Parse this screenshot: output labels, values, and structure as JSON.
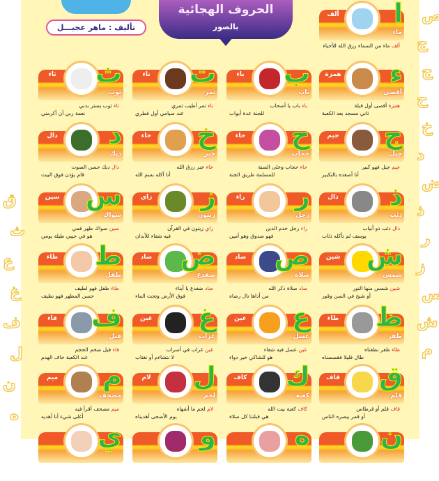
{
  "header": {
    "title": "الحروف الهجائية",
    "subtitle": "بالصور",
    "author": "تأليف : ماهر عجيـــل"
  },
  "colors": {
    "background": "#fff6b8",
    "band": "#f05a28",
    "letter": "#2fb34a",
    "banner": "#3a2c86"
  },
  "cards": [
    {
      "letter": "ا",
      "name": "ألف",
      "word": "ماء",
      "line1_name": "ألف",
      "line1": " ماء من السماء رزق الله للأحياء",
      "line2": "",
      "picture": "water-glass",
      "row": 0,
      "col": 3
    },
    {
      "letter": "ء",
      "name": "همزة",
      "word": "أقصى",
      "line1_name": "همزة",
      "line1": " أقصى أول قبلة",
      "line2": "ثاني مسجد بعد الكعبة",
      "picture": "aqsa-mosque",
      "row": 1,
      "col": 3
    },
    {
      "letter": "ب",
      "name": "باء",
      "word": "باب",
      "line1_name": "باء",
      "line1": " باب يا أصحاب",
      "line2": "للجنة عدة أبواب",
      "picture": "door",
      "row": 1,
      "col": 2
    },
    {
      "letter": "ت",
      "name": "تاء",
      "word": "تمر",
      "line1_name": "تاء",
      "line1": " تمر أطيب ثمري",
      "line2": "عند صيامي أول فطري",
      "picture": "dates",
      "row": 1,
      "col": 1
    },
    {
      "letter": "ث",
      "name": "ثاء",
      "word": "ثوب",
      "line1_name": "ثاء",
      "line1": " ثوب يستر بدني",
      "line2": "نعمة ربي أن أكرمني",
      "picture": "robe",
      "row": 1,
      "col": 0
    },
    {
      "letter": "ج",
      "name": "جيم",
      "word": "جبل",
      "line1_name": "جيم",
      "line1": " جبل فهو كبير",
      "line2": "أنا أصعده بالتكبير",
      "picture": "mountain",
      "row": 2,
      "col": 3
    },
    {
      "letter": "ح",
      "name": "حاء",
      "word": "حجاب",
      "line1_name": "حاء",
      "line1": " حجاب وعلى السنة",
      "line2": "للمسلمة طريق الجنة",
      "picture": "hijab-girl",
      "row": 2,
      "col": 2
    },
    {
      "letter": "خ",
      "name": "خاء",
      "word": "خبز",
      "line1_name": "خاء",
      "line1": " خبز رزق الله",
      "line2": "أنا آكله بسم الله",
      "picture": "bread",
      "row": 2,
      "col": 1
    },
    {
      "letter": "د",
      "name": "دال",
      "word": "ديك",
      "line1_name": "دال",
      "line1": " ديك حسن الصوت",
      "line2": "قام يؤذن فوق البيت",
      "picture": "rooster",
      "row": 2,
      "col": 0
    },
    {
      "letter": "ذ",
      "name": "ذال",
      "word": "ذئب",
      "line1_name": "ذال",
      "line1": " ذئب ذو أنياب",
      "line2": "يوسف لم تأكله ذئاب",
      "picture": "wolf",
      "row": 3,
      "col": 3
    },
    {
      "letter": "ر",
      "name": "راء",
      "word": "رجل",
      "line1_name": "راء",
      "line1": " رجل خدم الدين",
      "line2": "فهو صدوق وهو أمين",
      "picture": "man",
      "row": 3,
      "col": 2
    },
    {
      "letter": "ز",
      "name": "زاي",
      "word": "زيتون",
      "line1_name": "زاي",
      "line1": " زيتون في القرآن",
      "line2": "فيه شفاء للأبدان",
      "picture": "olives",
      "row": 3,
      "col": 1
    },
    {
      "letter": "س",
      "name": "سين",
      "word": "سواك",
      "line1_name": "سين",
      "line1": " سواك طهر فمي",
      "line2": "هو في جيبي طيلة يومي",
      "picture": "miswak",
      "row": 3,
      "col": 0
    },
    {
      "letter": "ش",
      "name": "شين",
      "word": "شمس",
      "line1_name": "شين",
      "line1": " شمس منها النور",
      "line2": "أو شيخ في السن وقور",
      "picture": "sun",
      "row": 4,
      "col": 3
    },
    {
      "letter": "ص",
      "name": "صاد",
      "word": "صلاة",
      "line1_name": "صاد",
      "line1": " صلاة ذكر الله",
      "line2": "من أداها نال رضاه",
      "picture": "prayer",
      "row": 4,
      "col": 2
    },
    {
      "letter": "ض",
      "name": "ضاد",
      "word": "ضفدع",
      "line1_name": "ضاد",
      "line1": " ضفدع يا أبناء",
      "line2": "فوق الأرض وتحت الماء",
      "picture": "frog",
      "row": 4,
      "col": 1
    },
    {
      "letter": "ط",
      "name": "طاء",
      "word": "طفل",
      "line1_name": "طاء",
      "line1": " طفل فهو لطيف",
      "line2": "حسن المظهر فهو نظيف",
      "picture": "baby",
      "row": 4,
      "col": 0
    },
    {
      "letter": "ظ",
      "name": "ظاء",
      "word": "ظفر",
      "line1_name": "ظاء",
      "line1": " ظفر نظفناه",
      "line2": "طال قليلا فقصصناه",
      "picture": "nail-clipper",
      "row": 5,
      "col": 3
    },
    {
      "letter": "ع",
      "name": "عين",
      "word": "عسل",
      "line1_name": "عين",
      "line1": " عسل فيه شفاء",
      "line2": "هو للشاكي خير دواء",
      "picture": "honey",
      "row": 5,
      "col": 2
    },
    {
      "letter": "غ",
      "name": "غين",
      "word": "غراب",
      "line1_name": "غين",
      "line1": " غراب في أسراب",
      "line2": "لا نتشاءم أو نغتاب",
      "picture": "crow",
      "row": 5,
      "col": 1
    },
    {
      "letter": "ف",
      "name": "فاء",
      "word": "فيل",
      "line1_name": "فاء",
      "line1": " فيل ضخم الحجم",
      "line2": "عند الكعبة خاف الهدم",
      "picture": "elephant",
      "row": 5,
      "col": 0
    },
    {
      "letter": "ق",
      "name": "قاف",
      "word": "قلم",
      "line1_name": "قاف",
      "line1": " قلم أو قرطاس",
      "line2": "أو قمر يبصره الناس",
      "picture": "pencil",
      "row": 6,
      "col": 3
    },
    {
      "letter": "ك",
      "name": "كاف",
      "word": "كعبة",
      "line1_name": "كاف",
      "line1": " كعبة بيت الله",
      "line2": "هي قبلتنا كل صلاة",
      "picture": "kaaba",
      "row": 6,
      "col": 2
    },
    {
      "letter": "ل",
      "name": "لام",
      "word": "لحم",
      "line1_name": "لام",
      "line1": " لحم ما أشهاه",
      "line2": "يوم الأضحى أهديناه",
      "picture": "meat",
      "row": 6,
      "col": 1
    },
    {
      "letter": "م",
      "name": "ميم",
      "word": "مصحف",
      "line1_name": "ميم",
      "line1": " مصحف أقرأ فيه",
      "line2": "أغلى شيء أنا أهديه",
      "picture": "quran",
      "row": 6,
      "col": 0
    },
    {
      "letter": "ن",
      "picture": "palm-tree",
      "row": 7,
      "col": 3
    },
    {
      "letter": "ه",
      "picture": "gift",
      "row": 7,
      "col": 2
    },
    {
      "letter": "و",
      "picture": "rose",
      "row": 7,
      "col": 1
    },
    {
      "letter": "ي",
      "picture": "hand",
      "row": 7,
      "col": 0
    }
  ],
  "decorations": {
    "right": [
      "ص",
      "ج",
      "ج",
      "ح",
      "خ",
      "د",
      "ض",
      "ذ",
      "ر",
      "ز",
      "س",
      "ش",
      "م"
    ],
    "left": [
      "ق",
      "ث",
      "ع",
      "غ",
      "ف",
      "ل",
      "ن",
      "ه"
    ]
  }
}
